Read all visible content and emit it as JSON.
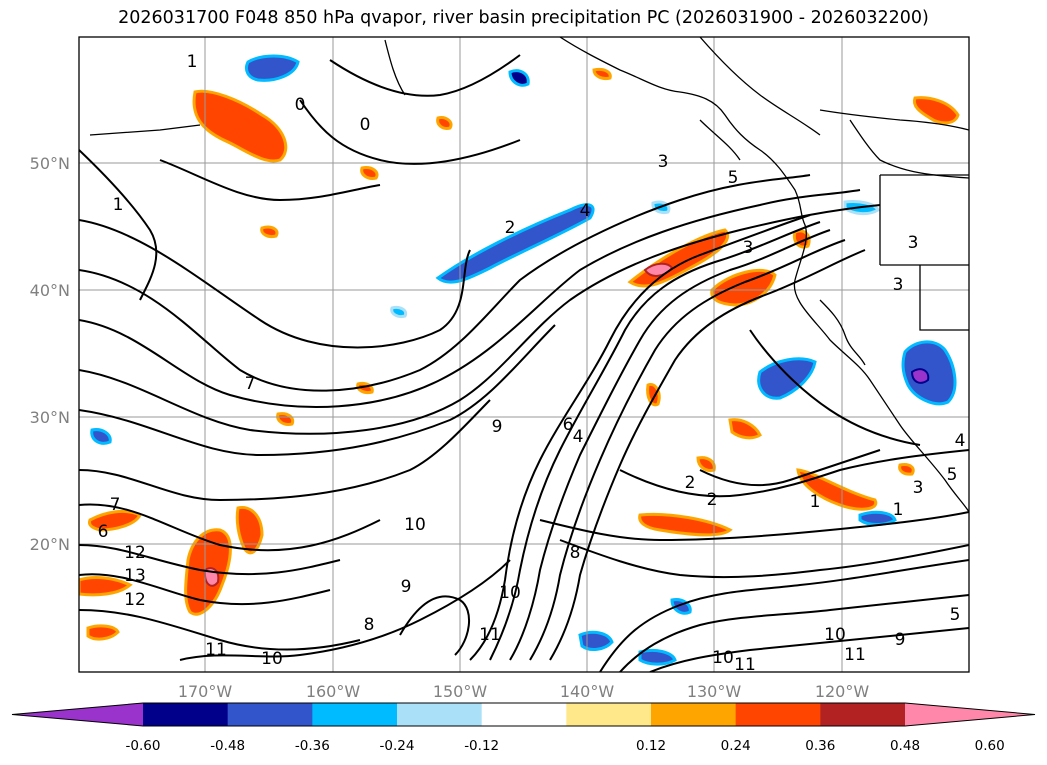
{
  "title": "2026031700 F048 850 hPa qvapor, river basin precipitation PC (2026031900 - 2026032200)",
  "map": {
    "lat_labels": [
      "50°N",
      "40°N",
      "30°N",
      "20°N"
    ],
    "lon_labels": [
      "170°W",
      "160°W",
      "150°W",
      "140°W",
      "130°W",
      "120°W"
    ],
    "gridlines": true,
    "contour_labels": [
      {
        "text": "1"
      },
      {
        "text": "0"
      },
      {
        "text": "0"
      },
      {
        "text": "1"
      },
      {
        "text": "3"
      },
      {
        "text": "5"
      },
      {
        "text": "4"
      },
      {
        "text": "2"
      },
      {
        "text": "3"
      },
      {
        "text": "3"
      },
      {
        "text": "3"
      },
      {
        "text": "7"
      },
      {
        "text": "9"
      },
      {
        "text": "6"
      },
      {
        "text": "4"
      },
      {
        "text": "10"
      },
      {
        "text": "12"
      },
      {
        "text": "13"
      },
      {
        "text": "12"
      },
      {
        "text": "7"
      },
      {
        "text": "6"
      },
      {
        "text": "11"
      },
      {
        "text": "10"
      },
      {
        "text": "8"
      },
      {
        "text": "9"
      },
      {
        "text": "10"
      },
      {
        "text": "11"
      },
      {
        "text": "8"
      },
      {
        "text": "2"
      },
      {
        "text": "2"
      },
      {
        "text": "1"
      },
      {
        "text": "3"
      },
      {
        "text": "1"
      },
      {
        "text": "4"
      },
      {
        "text": "5"
      },
      {
        "text": "10"
      },
      {
        "text": "11"
      },
      {
        "text": "9"
      },
      {
        "text": "10"
      },
      {
        "text": "11"
      },
      {
        "text": "5"
      }
    ]
  },
  "colorbar": {
    "ticks": [
      "-0.60",
      "-0.48",
      "-0.36",
      "-0.24",
      "-0.12",
      "0.12",
      "0.24",
      "0.36",
      "0.48",
      "0.60"
    ],
    "colors": [
      "#9933cc",
      "#00008b",
      "#3355cc",
      "#00bbff",
      "#aae0f8",
      "#ffffff",
      "#ffe88a",
      "#ffa500",
      "#ff4500",
      "#b22222",
      "#ff88aa"
    ],
    "extend": "both"
  }
}
